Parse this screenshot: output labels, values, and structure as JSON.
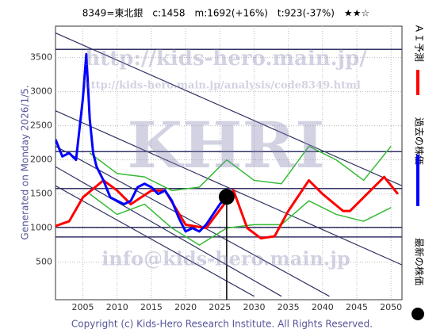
{
  "chart_data": {
    "type": "line",
    "title": "8349=東北銀　c:1458　m:1692(+16%)　t:923(-37%)　★★☆",
    "watermarks": [
      "http://kids-hero.main.jp/",
      "http://kids-hero.main.jp/analysis/code8349.html",
      "KHRI",
      "info@kids-hero.main.jp"
    ],
    "generated": "Generated on Monday 2026/1/5.",
    "copyright": "Copyright (c) Kids-Hero Research Institute. All Rights Reserved.",
    "xlim": [
      2001,
      2051.6
    ],
    "ylim": [
      -50,
      3960
    ],
    "xticks": [
      2005,
      2010,
      2015,
      2020,
      2025,
      2030,
      2035,
      2040,
      2045,
      2050
    ],
    "yticks": [
      500,
      1000,
      1500,
      2000,
      2500,
      3000,
      3500
    ],
    "grid": true,
    "series": [
      {
        "name": "ＡＩ予測",
        "color": "#ff0000",
        "x": [
          2001,
          2003,
          2005,
          2008,
          2010,
          2012,
          2015,
          2017,
          2020,
          2023,
          2026,
          2027,
          2029,
          2031,
          2033,
          2035,
          2038,
          2040,
          2043,
          2044,
          2047,
          2049,
          2051
        ],
        "values": [
          1030,
          1100,
          1450,
          1700,
          1550,
          1350,
          1550,
          1550,
          1050,
          1000,
          1400,
          1550,
          1000,
          850,
          880,
          1250,
          1700,
          1500,
          1250,
          1250,
          1550,
          1750,
          1500
        ]
      },
      {
        "name": "過去の株価",
        "color": "#0000ff",
        "x": [
          2001,
          2002,
          2003,
          2004,
          2005,
          2005.5,
          2006,
          2006.5,
          2007,
          2008,
          2009,
          2010,
          2011,
          2012,
          2013,
          2014,
          2015,
          2016,
          2017,
          2018,
          2019,
          2020,
          2021,
          2022,
          2023,
          2024,
          2025,
          2026
        ],
        "values": [
          2300,
          2050,
          2100,
          2000,
          2900,
          3550,
          2600,
          2100,
          1900,
          1700,
          1450,
          1400,
          1350,
          1400,
          1600,
          1650,
          1600,
          1500,
          1550,
          1400,
          1150,
          950,
          1000,
          950,
          1050,
          1200,
          1350,
          1458
        ]
      },
      {
        "color": "#33bb33",
        "x": [
          2006,
          2010,
          2014,
          2018,
          2022,
          2026,
          2030,
          2034,
          2038,
          2042,
          2046,
          2050
        ],
        "values": [
          2100,
          1800,
          1750,
          1550,
          1600,
          2000,
          1700,
          1650,
          2200,
          2000,
          1700,
          2200
        ]
      },
      {
        "color": "#33bb33",
        "x": [
          2006,
          2010,
          2014,
          2018,
          2022,
          2026,
          2030,
          2034,
          2038,
          2042,
          2046,
          2050
        ],
        "values": [
          1500,
          1200,
          1350,
          1000,
          750,
          1000,
          1050,
          1050,
          1400,
          1200,
          1100,
          1300
        ]
      }
    ],
    "latest": {
      "name": "最新の株価",
      "x": 2026,
      "value": 1458,
      "color": "#000000"
    },
    "hlines": [
      3620,
      2120,
      1580,
      1010,
      870
    ],
    "trend_lines": [
      {
        "x": [
          2001,
          2051.6
        ],
        "values": [
          3860,
          1620
        ]
      },
      {
        "x": [
          2001,
          2051.6
        ],
        "values": [
          2720,
          460
        ]
      },
      {
        "x": [
          2001,
          2041
        ],
        "values": [
          2200,
          0
        ]
      },
      {
        "x": [
          2001,
          2034
        ],
        "values": [
          1900,
          0
        ]
      },
      {
        "x": [
          2001,
          2030
        ],
        "values": [
          1620,
          0
        ]
      }
    ]
  }
}
